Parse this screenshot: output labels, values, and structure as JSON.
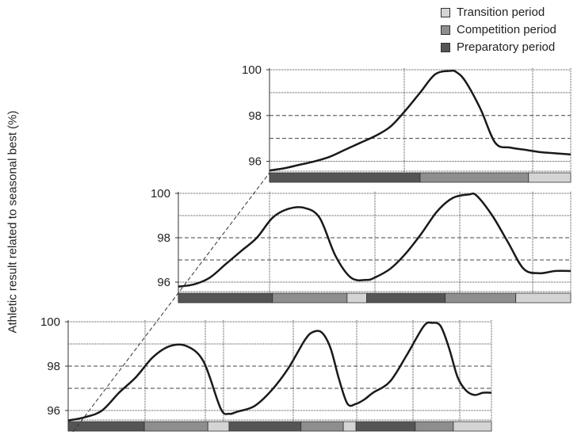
{
  "legend": {
    "items": [
      {
        "label": "Transition period",
        "color": "#d4d4d4"
      },
      {
        "label": "Competition period",
        "color": "#8e8e8e"
      },
      {
        "label": "Preparatory period",
        "color": "#555555"
      }
    ]
  },
  "chart_data": [
    {
      "type": "line",
      "title": "",
      "ylabel": "Athletic result related to seasonal best (%)",
      "xlabel": "",
      "ylim": [
        95.5,
        100
      ],
      "yticks": [
        "96",
        "98",
        "100"
      ],
      "x": [
        0,
        5,
        10,
        15,
        20,
        25,
        30,
        35,
        40,
        45,
        50,
        55,
        60,
        62,
        65,
        70,
        75,
        80,
        85,
        90,
        95,
        100
      ],
      "series": [
        {
          "values": [
            95.6,
            95.7,
            95.85,
            96.0,
            96.2,
            96.5,
            96.8,
            97.1,
            97.5,
            98.2,
            99.0,
            99.8,
            99.95,
            99.9,
            99.5,
            98.3,
            96.8,
            96.6,
            96.5,
            96.4,
            96.35,
            96.3
          ]
        }
      ],
      "periods": [
        {
          "label": "Preparatory period",
          "from": 0,
          "to": 50
        },
        {
          "label": "Competition period",
          "from": 50,
          "to": 86
        },
        {
          "label": "Transition period",
          "from": 86,
          "to": 100
        }
      ]
    },
    {
      "type": "line",
      "title": "",
      "ylim": [
        95.5,
        100
      ],
      "yticks": [
        "96",
        "98",
        "100"
      ],
      "x": [
        0,
        4,
        8,
        12,
        16,
        20,
        24,
        28,
        32,
        36,
        40,
        44,
        48,
        50,
        54,
        58,
        62,
        66,
        70,
        74,
        76,
        80,
        84,
        88,
        92,
        96,
        100
      ],
      "series": [
        {
          "values": [
            95.8,
            95.9,
            96.2,
            96.8,
            97.4,
            98.0,
            98.9,
            99.3,
            99.35,
            98.9,
            97.2,
            96.2,
            96.1,
            96.2,
            96.6,
            97.3,
            98.2,
            99.2,
            99.8,
            99.95,
            99.9,
            99.0,
            97.8,
            96.6,
            96.4,
            96.5,
            96.5
          ]
        }
      ],
      "periods": [
        {
          "label": "Preparatory period",
          "from": 0,
          "to": 24
        },
        {
          "label": "Competition period",
          "from": 24,
          "to": 43
        },
        {
          "label": "Transition period",
          "from": 43,
          "to": 48
        },
        {
          "label": "Preparatory period",
          "from": 48,
          "to": 68
        },
        {
          "label": "Competition period",
          "from": 68,
          "to": 86
        },
        {
          "label": "Transition period",
          "from": 86,
          "to": 100
        }
      ]
    },
    {
      "type": "line",
      "title": "",
      "ylim": [
        95.5,
        100
      ],
      "yticks": [
        "96",
        "98",
        "100"
      ],
      "x": [
        0,
        4,
        8,
        12,
        16,
        20,
        24,
        28,
        32,
        36,
        38,
        40,
        44,
        48,
        52,
        56,
        58,
        60,
        62,
        64,
        66,
        68,
        70,
        72,
        76,
        80,
        84,
        86,
        88,
        90,
        92,
        94,
        96,
        98,
        100
      ],
      "series": [
        {
          "values": [
            95.55,
            95.7,
            96.0,
            96.8,
            97.5,
            98.4,
            98.9,
            98.9,
            98.2,
            96.1,
            95.85,
            95.95,
            96.2,
            96.9,
            97.9,
            99.2,
            99.55,
            99.5,
            98.8,
            97.4,
            96.3,
            96.3,
            96.5,
            96.8,
            97.3,
            98.5,
            99.8,
            99.95,
            99.8,
            98.8,
            97.5,
            96.9,
            96.7,
            96.8,
            96.8
          ]
        }
      ],
      "periods": [
        {
          "label": "Preparatory period",
          "from": 0,
          "to": 18
        },
        {
          "label": "Competition period",
          "from": 18,
          "to": 33
        },
        {
          "label": "Transition period",
          "from": 33,
          "to": 38
        },
        {
          "label": "Preparatory period",
          "from": 38,
          "to": 55
        },
        {
          "label": "Competition period",
          "from": 55,
          "to": 65
        },
        {
          "label": "Transition period",
          "from": 65,
          "to": 68
        },
        {
          "label": "Preparatory period",
          "from": 68,
          "to": 82
        },
        {
          "label": "Competition period",
          "from": 82,
          "to": 91
        },
        {
          "label": "Transition period",
          "from": 91,
          "to": 100
        }
      ]
    }
  ]
}
